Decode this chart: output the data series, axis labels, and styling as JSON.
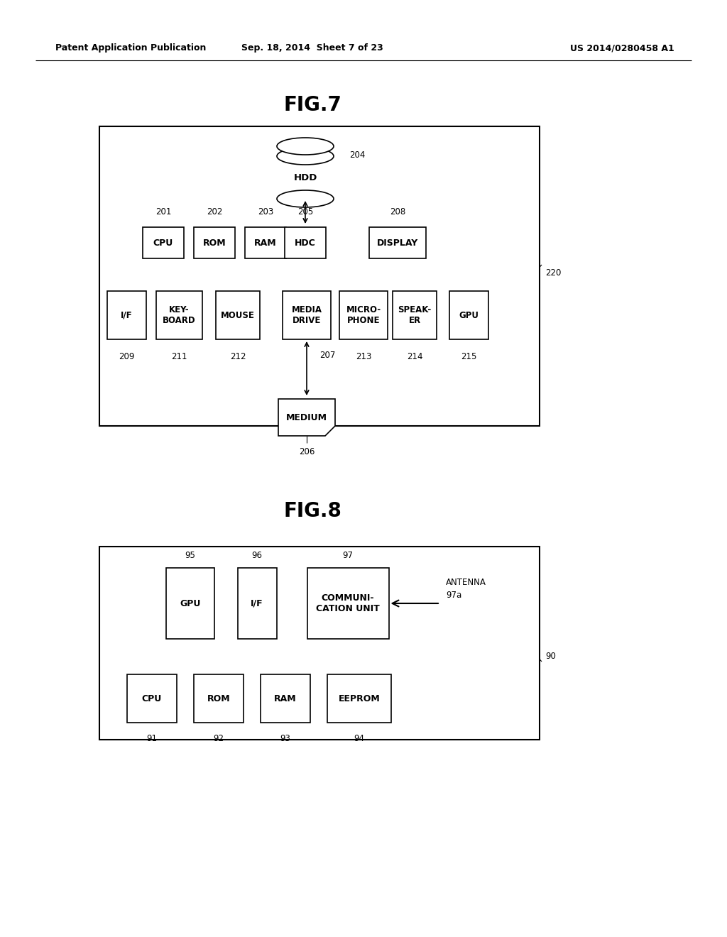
{
  "bg_color": "#ffffff",
  "header_left": "Patent Application Publication",
  "header_center": "Sep. 18, 2014  Sheet 7 of 23",
  "header_right": "US 2014/0280458 A1",
  "fig7_title": "FIG.7",
  "fig8_title": "FIG.8"
}
